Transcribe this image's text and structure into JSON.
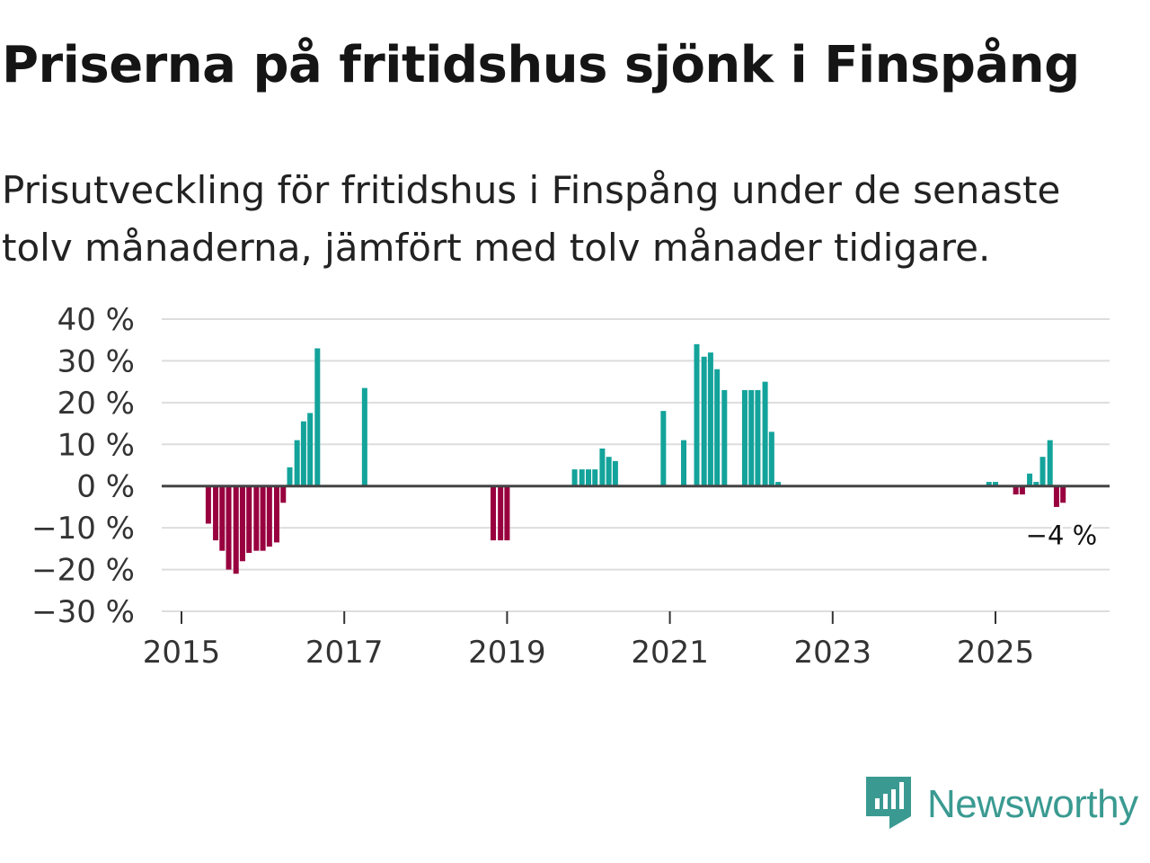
{
  "title": "Priserna på fritidshus sjönk i Finspång",
  "subtitle": "Prisutveckling för fritidshus i Finspång under de senaste tolv månaderna, jämfört med tolv månader tidigare.",
  "brand": {
    "name": "Newsworthy",
    "icon": "newsworthy-logo-icon"
  },
  "colors": {
    "positive": "#13a39b",
    "negative": "#99003f",
    "grid": "#dddddd",
    "zero": "#444444",
    "brand": "#3a9a91"
  },
  "chart_data": {
    "type": "bar",
    "title": "Priserna på fritidshus sjönk i Finspång",
    "xlabel": "",
    "ylabel": "",
    "ylim": [
      -30,
      40
    ],
    "y_ticks": [
      40,
      30,
      20,
      10,
      0,
      -10,
      -20,
      -30
    ],
    "y_tick_labels": [
      "40 %",
      "30 %",
      "20 %",
      "10 %",
      "0 %",
      "−10 %",
      "−20 %",
      "−30 %"
    ],
    "x_ticks": [
      2015,
      2017,
      2019,
      2021,
      2023,
      2025
    ],
    "x_tick_labels": [
      "2015",
      "2017",
      "2019",
      "2021",
      "2023",
      "2025"
    ],
    "series": [
      {
        "name": "Prisutveckling",
        "values": [
          [
            2015.33,
            -9
          ],
          [
            2015.42,
            -13
          ],
          [
            2015.5,
            -15.5
          ],
          [
            2015.58,
            -20
          ],
          [
            2015.67,
            -21
          ],
          [
            2015.75,
            -18
          ],
          [
            2015.83,
            -16
          ],
          [
            2015.92,
            -15.5
          ],
          [
            2016.0,
            -15.5
          ],
          [
            2016.08,
            -14.5
          ],
          [
            2016.17,
            -13.5
          ],
          [
            2016.25,
            -4
          ],
          [
            2016.33,
            4.5
          ],
          [
            2016.42,
            11
          ],
          [
            2016.5,
            15.5
          ],
          [
            2016.58,
            17.5
          ],
          [
            2016.67,
            33
          ],
          [
            2017.25,
            23.5
          ],
          [
            2018.83,
            -13
          ],
          [
            2018.92,
            -13
          ],
          [
            2019.0,
            -13
          ],
          [
            2019.83,
            4
          ],
          [
            2019.92,
            4
          ],
          [
            2020.0,
            4
          ],
          [
            2020.08,
            4
          ],
          [
            2020.17,
            9
          ],
          [
            2020.25,
            7
          ],
          [
            2020.33,
            6
          ],
          [
            2020.92,
            18
          ],
          [
            2021.17,
            11
          ],
          [
            2021.33,
            34
          ],
          [
            2021.42,
            31
          ],
          [
            2021.5,
            32
          ],
          [
            2021.58,
            28
          ],
          [
            2021.67,
            23
          ],
          [
            2021.92,
            23
          ],
          [
            2022.0,
            23
          ],
          [
            2022.08,
            23
          ],
          [
            2022.17,
            25
          ],
          [
            2022.25,
            13
          ],
          [
            2022.33,
            1
          ],
          [
            2024.92,
            1
          ],
          [
            2025.0,
            1
          ],
          [
            2025.25,
            -2
          ],
          [
            2025.33,
            -2
          ],
          [
            2025.42,
            3
          ],
          [
            2025.5,
            1
          ],
          [
            2025.58,
            7
          ],
          [
            2025.67,
            11
          ],
          [
            2025.75,
            -5
          ],
          [
            2025.83,
            -4
          ]
        ]
      }
    ],
    "annotations": [
      {
        "x": 2025.83,
        "y": -4,
        "label": "−4 %"
      }
    ]
  }
}
